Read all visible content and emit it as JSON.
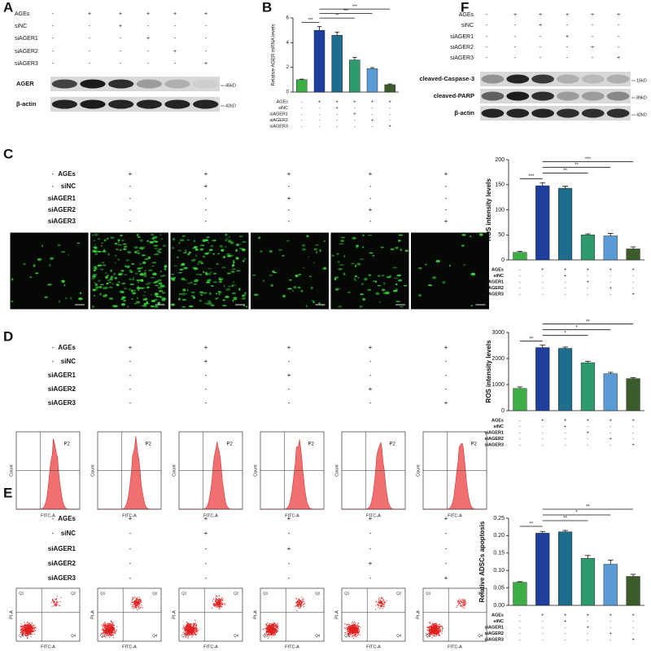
{
  "panels": [
    "A",
    "B",
    "C",
    "D",
    "E",
    "F"
  ],
  "treatments": {
    "names": [
      "AGEs",
      "siNC",
      "siAGER1",
      "siAGER2",
      "siAGER3"
    ],
    "signs": [
      [
        "-",
        "+",
        "+",
        "+",
        "+",
        "+"
      ],
      [
        "-",
        "-",
        "+",
        "-",
        "-",
        "-"
      ],
      [
        "-",
        "-",
        "-",
        "+",
        "-",
        "-"
      ],
      [
        "-",
        "-",
        "-",
        "-",
        "+",
        "-"
      ],
      [
        "-",
        "-",
        "-",
        "-",
        "-",
        "+"
      ]
    ]
  },
  "blot_a": {
    "bands": [
      "AGER",
      "β-actin"
    ],
    "sizes": [
      "45kD",
      "42kD"
    ]
  },
  "blot_f": {
    "bands": [
      "cleaved-Caspase-3",
      "cleaved-PARP",
      "β-actin"
    ],
    "sizes": [
      "15kD",
      "89kD",
      "42kD"
    ]
  },
  "flow": {
    "x_label": "FITC-A",
    "y_label": "Count",
    "gate": "P2"
  },
  "apoptosis": {
    "x_label": "FITC-A",
    "y_label": "PI-A",
    "quadrants": [
      "Q1",
      "Q2",
      "Q3",
      "Q4"
    ]
  },
  "chart_data": [
    {
      "type": "bar",
      "ylabel": "Relative AGER mRNA levels",
      "values": [
        1,
        5.0,
        4.6,
        2.6,
        1.9,
        0.6
      ],
      "errors": [
        0.05,
        0.3,
        0.25,
        0.2,
        0.08,
        0.06
      ],
      "colors": [
        "#3cae45",
        "#1e3f9c",
        "#1f6d8c",
        "#2e9a6d",
        "#5b9bd5",
        "#3b5b2b"
      ],
      "ylim": [
        0,
        6
      ],
      "yticks": [
        0,
        2,
        4,
        6
      ],
      "annotations": [
        "***",
        "**",
        "***",
        "***"
      ]
    },
    {
      "type": "bar",
      "ylabel": "ROS intensity levels",
      "values": [
        15,
        148,
        143,
        50,
        48,
        22
      ],
      "errors": [
        2,
        6,
        4,
        2,
        5,
        4
      ],
      "colors": [
        "#3cae45",
        "#1e3f9c",
        "#1f6d8c",
        "#2e9a6d",
        "#5b9bd5",
        "#3b5b2b"
      ],
      "ylim": [
        0,
        200
      ],
      "yticks": [
        0,
        50,
        100,
        150,
        200
      ],
      "annotations": [
        "***",
        "**",
        "**",
        "***"
      ]
    },
    {
      "type": "bar",
      "ylabel": "ROS intensity levels",
      "values": [
        850,
        2420,
        2390,
        1840,
        1420,
        1230
      ],
      "errors": [
        60,
        90,
        50,
        50,
        50,
        40
      ],
      "colors": [
        "#3cae45",
        "#1e3f9c",
        "#1f6d8c",
        "#2e9a6d",
        "#5b9bd5",
        "#3b5b2b"
      ],
      "ylim": [
        0,
        3000
      ],
      "yticks": [
        0,
        1000,
        2000,
        3000
      ],
      "annotations": [
        "**",
        "*",
        "*",
        "**"
      ]
    },
    {
      "type": "bar",
      "ylabel": "Relative ADSCs apoptosis",
      "values": [
        0.066,
        0.207,
        0.211,
        0.135,
        0.118,
        0.083
      ],
      "errors": [
        0.002,
        0.005,
        0.004,
        0.008,
        0.012,
        0.006
      ],
      "colors": [
        "#3cae45",
        "#1e3f9c",
        "#1f6d8c",
        "#2e9a6d",
        "#5b9bd5",
        "#3b5b2b"
      ],
      "ylim": [
        0,
        0.25
      ],
      "yticks": [
        {
          "value": 0,
          "label": "0.00"
        },
        {
          "value": 0.05,
          "label": "0.05"
        },
        {
          "value": 0.1,
          "label": "0.10"
        },
        {
          "value": 0.15,
          "label": "0.15"
        },
        {
          "value": 0.2,
          "label": "0.20"
        },
        {
          "value": 0.25,
          "label": "0.25"
        }
      ],
      "annotations": [
        "**",
        "**",
        "*",
        "**"
      ]
    }
  ]
}
